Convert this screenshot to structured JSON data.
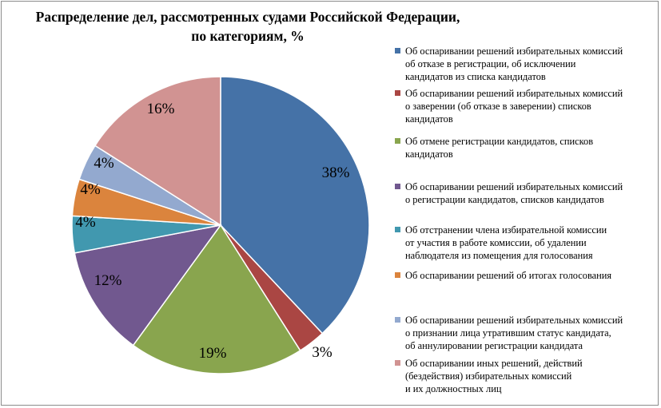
{
  "chart_data": {
    "type": "pie",
    "title_lines": [
      "Распределение дел, рассмотренных судами Российской Федерации,",
      "по категориям, %"
    ],
    "slices": [
      {
        "value": 38,
        "label": "38%",
        "color": "#4572A7",
        "legend_lines": [
          "Об оспаривании решений избирательных комиссий",
          "об отказе в регистрации, об исключении",
          "кандидатов из списка кандидатов"
        ]
      },
      {
        "value": 3,
        "label": "3%",
        "color": "#AA4643",
        "legend_lines": [
          "Об оспаривании решений избирательных комиссий",
          "о заверении (об отказе в заверении) списков",
          "кандидатов"
        ]
      },
      {
        "value": 19,
        "label": "19%",
        "color": "#89A54E",
        "legend_lines": [
          "Об отмене регистрации кандидатов, списков",
          "кандидатов"
        ]
      },
      {
        "value": 12,
        "label": "12%",
        "color": "#71588F",
        "legend_lines": [
          "Об оспаривании решений избирательных комиссий",
          "о регистрации кандидатов, списков кандидатов"
        ]
      },
      {
        "value": 4,
        "label": "4%",
        "color": "#4198AF",
        "legend_lines": [
          "Об отстранении члена избирательной комиссии",
          "от участия в работе комиссии, об удалении",
          "наблюдателя из помещения для голосования"
        ]
      },
      {
        "value": 4,
        "label": "4%",
        "color": "#DB843D",
        "legend_lines": [
          "Об оспаривании решений об итогах голосования"
        ]
      },
      {
        "value": 4,
        "label": "4%",
        "color": "#93A9CF",
        "legend_lines": [
          "Об оспаривании решений избирательных комиссий",
          "о признании лица утратившим статус кандидата,",
          "об аннулировании регистрации кандидата"
        ]
      },
      {
        "value": 16,
        "label": "16%",
        "color": "#D19392",
        "legend_lines": [
          "Об оспаривании иных решений, действий",
          "(бездействия) избирательных комиссий",
          "и их должностных лиц"
        ]
      }
    ],
    "legend_position": "right"
  }
}
